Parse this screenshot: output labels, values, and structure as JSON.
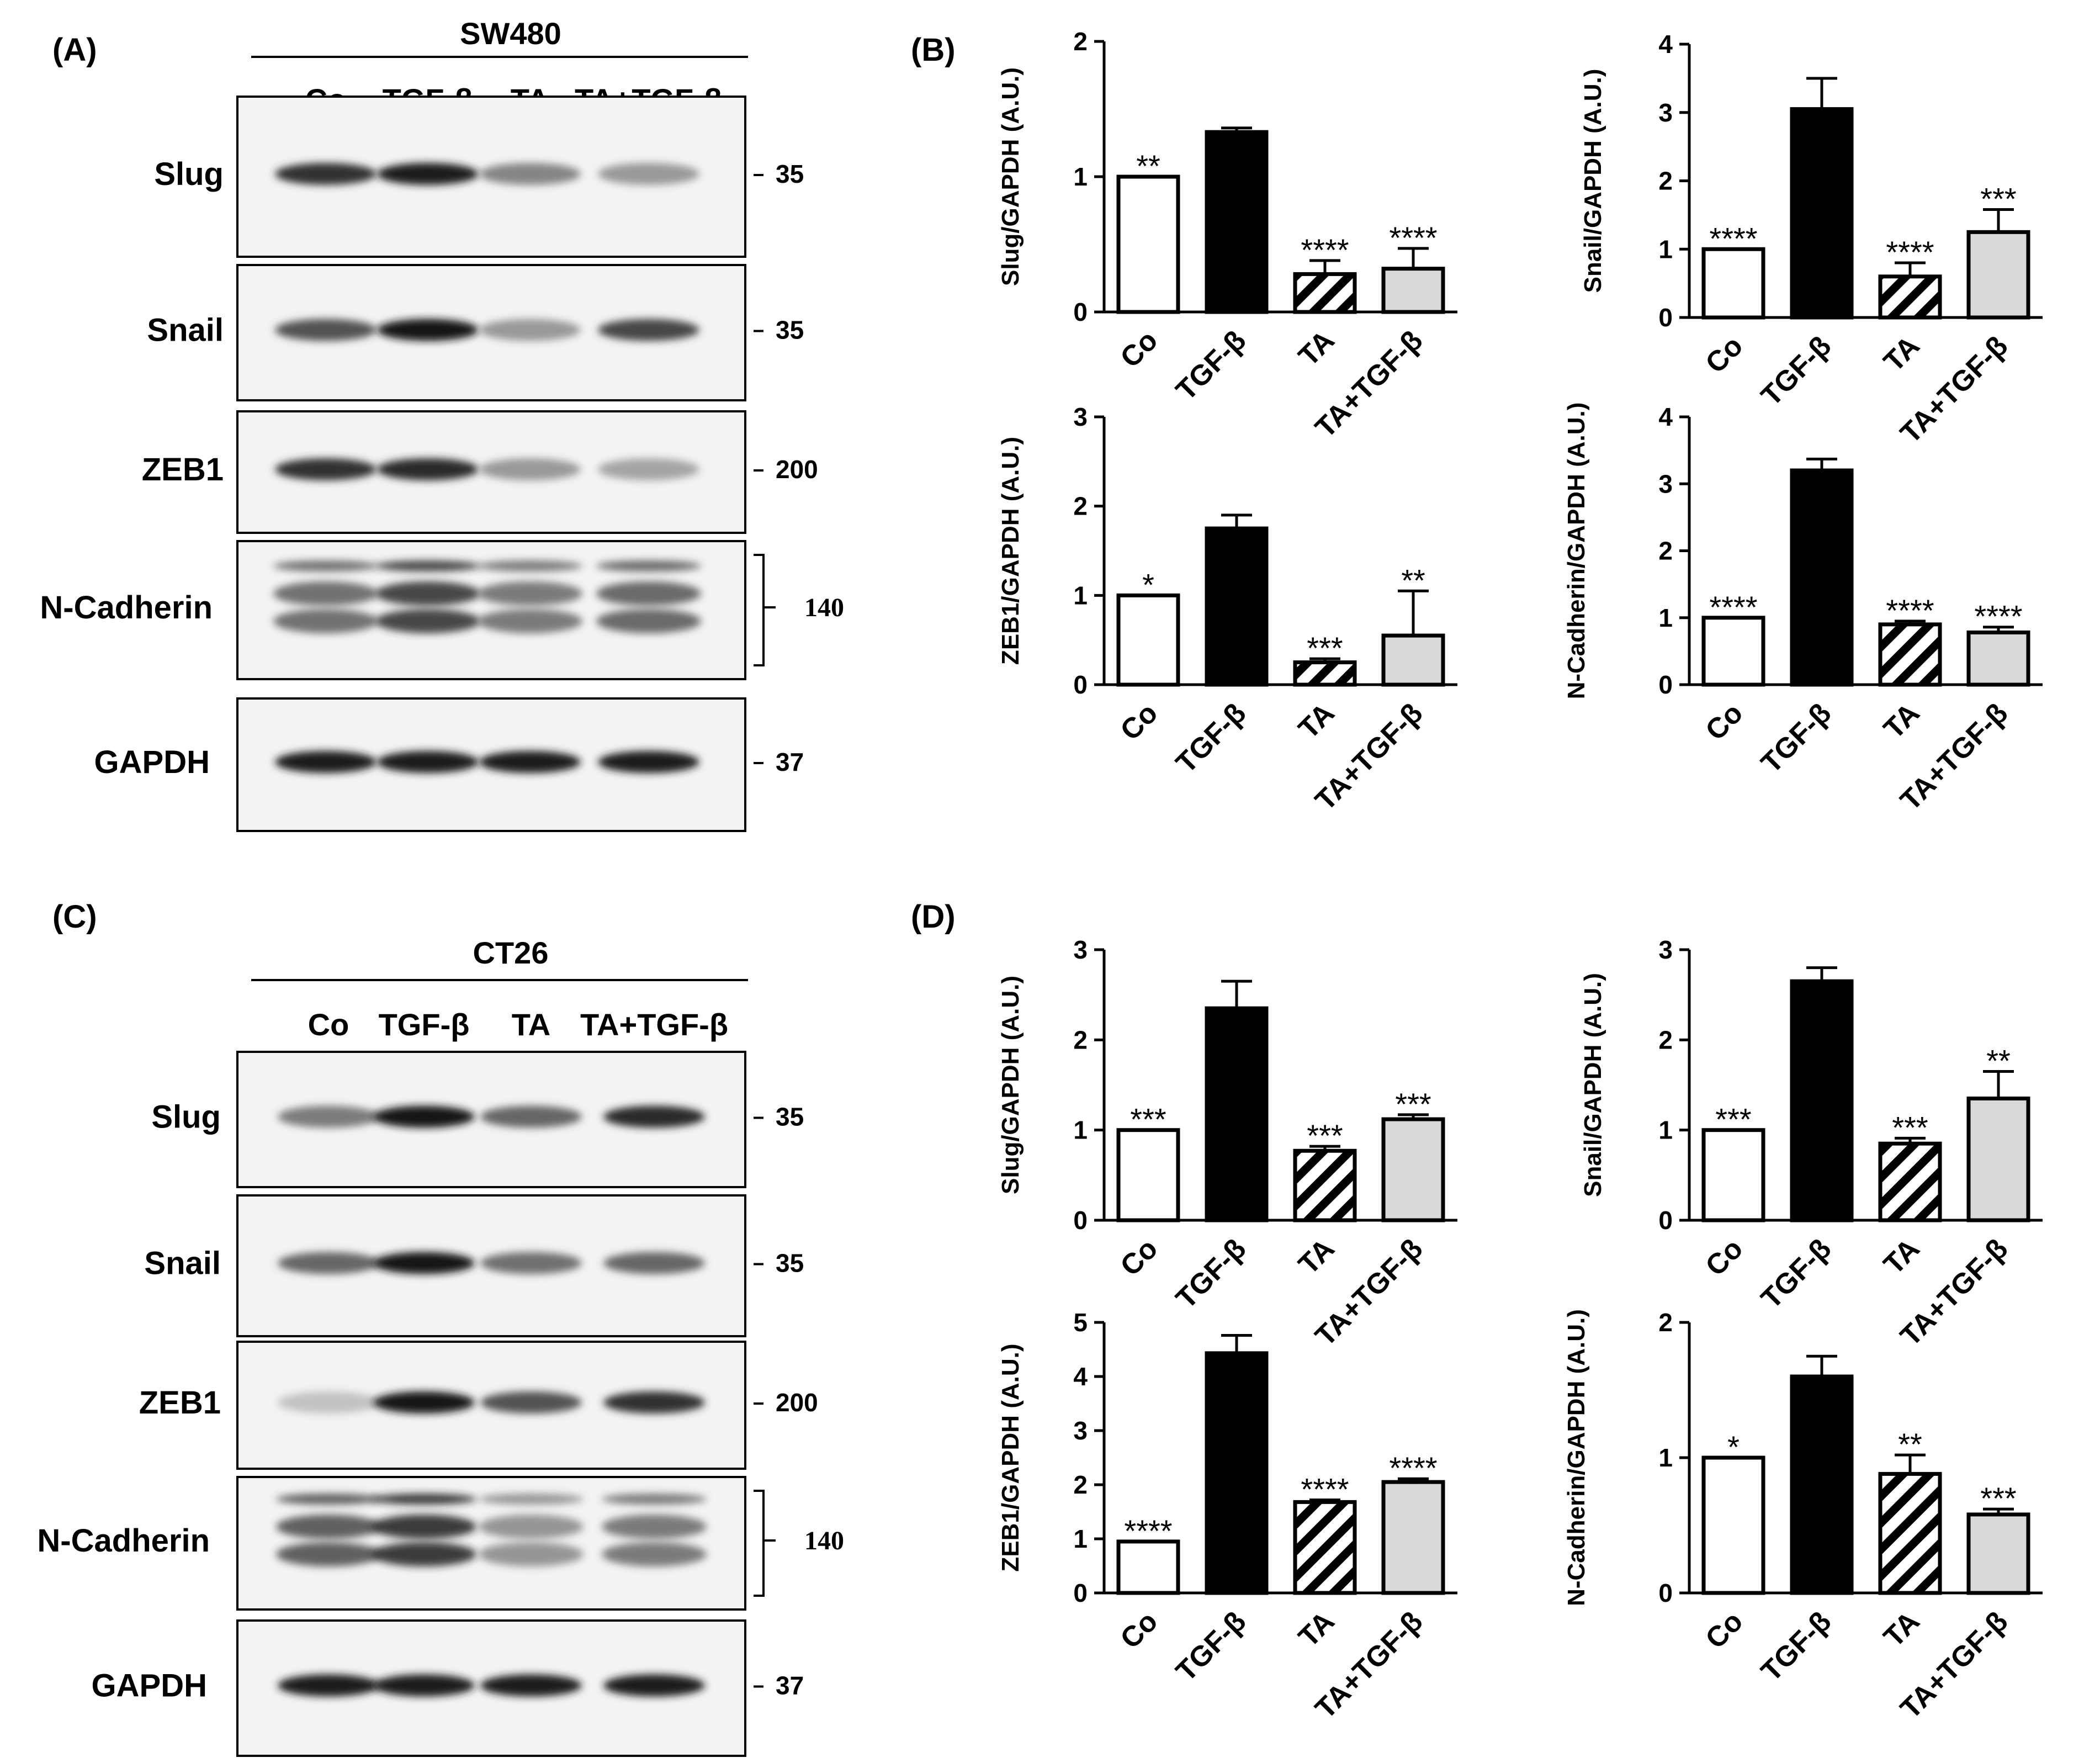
{
  "panel_labels": [
    "(A)",
    "(B)",
    "(C)",
    "(D)"
  ],
  "blots": [
    {
      "title": "SW480",
      "lanes": [
        "Co",
        "TGF-β",
        "TA",
        "TA+TGF-β"
      ],
      "rows": [
        {
          "label": "Slug",
          "mw": "35",
          "intensity": [
            0.85,
            0.95,
            0.45,
            0.35
          ]
        },
        {
          "label": "Snail",
          "mw": "35",
          "intensity": [
            0.7,
            1.0,
            0.35,
            0.75
          ]
        },
        {
          "label": "ZEB1",
          "mw": "200",
          "intensity": [
            0.85,
            0.9,
            0.35,
            0.3
          ]
        },
        {
          "label": "N-Cadherin",
          "mw": "140",
          "intensity": [
            0.65,
            0.9,
            0.6,
            0.7
          ]
        },
        {
          "label": "GAPDH",
          "mw": "37",
          "intensity": [
            0.95,
            0.95,
            0.95,
            0.95
          ]
        }
      ]
    },
    {
      "title": "CT26",
      "lanes": [
        "Co",
        "TGF-β",
        "TA",
        "TA+TGF-β"
      ],
      "rows": [
        {
          "label": "Slug",
          "mw": "35",
          "intensity": [
            0.5,
            1.0,
            0.6,
            0.9
          ]
        },
        {
          "label": "Snail",
          "mw": "35",
          "intensity": [
            0.6,
            1.0,
            0.55,
            0.6
          ]
        },
        {
          "label": "ZEB1",
          "mw": "200",
          "intensity": [
            0.15,
            1.0,
            0.7,
            0.85
          ]
        },
        {
          "label": "N-Cadherin",
          "mw": "140",
          "intensity": [
            0.75,
            0.95,
            0.45,
            0.6
          ]
        },
        {
          "label": "GAPDH",
          "mw": "37",
          "intensity": [
            0.95,
            0.95,
            0.95,
            0.95
          ]
        }
      ]
    }
  ],
  "chart_data": [
    {
      "panel": "(B)",
      "type": "bar",
      "ylabel": "Slug/GAPDH (A.U.)",
      "categories": [
        "Co",
        "TGF-β",
        "TA",
        "TA+TGF-β"
      ],
      "values": [
        1.0,
        1.33,
        0.28,
        0.32
      ],
      "errors": [
        0,
        0.03,
        0.1,
        0.15
      ],
      "significance": [
        "**",
        "",
        "****",
        "****"
      ],
      "ylim": [
        0,
        2
      ],
      "ticks": [
        0,
        1,
        2
      ]
    },
    {
      "panel": "(B)",
      "type": "bar",
      "ylabel": "Snail/GAPDH (A.U.)",
      "categories": [
        "Co",
        "TGF-β",
        "TA",
        "TA+TGF-β"
      ],
      "values": [
        1.0,
        3.05,
        0.6,
        1.25
      ],
      "errors": [
        0,
        0.45,
        0.2,
        0.33
      ],
      "significance": [
        "****",
        "",
        "****",
        "***"
      ],
      "ylim": [
        0,
        4
      ],
      "ticks": [
        0,
        1,
        2,
        3,
        4
      ]
    },
    {
      "panel": "(B)",
      "type": "bar",
      "ylabel": "ZEB1/GAPDH (A.U.)",
      "categories": [
        "Co",
        "TGF-β",
        "TA",
        "TA+TGF-β"
      ],
      "values": [
        1.0,
        1.75,
        0.25,
        0.55
      ],
      "errors": [
        0,
        0.15,
        0.04,
        0.5
      ],
      "significance": [
        "*",
        "",
        "***",
        "**"
      ],
      "ylim": [
        0,
        3
      ],
      "ticks": [
        0,
        1,
        2,
        3
      ]
    },
    {
      "panel": "(B)",
      "type": "bar",
      "ylabel": "N-Cadherin/GAPDH (A.U.)",
      "categories": [
        "Co",
        "TGF-β",
        "TA",
        "TA+TGF-β"
      ],
      "values": [
        1.0,
        3.2,
        0.9,
        0.78
      ],
      "errors": [
        0,
        0.17,
        0.05,
        0.08
      ],
      "significance": [
        "****",
        "",
        "****",
        "****"
      ],
      "ylim": [
        0,
        4
      ],
      "ticks": [
        0,
        1,
        2,
        3,
        4
      ]
    },
    {
      "panel": "(D)",
      "type": "bar",
      "ylabel": "Slug/GAPDH (A.U.)",
      "categories": [
        "Co",
        "TGF-β",
        "TA",
        "TA+TGF-β"
      ],
      "values": [
        1.0,
        2.35,
        0.77,
        1.12
      ],
      "errors": [
        0,
        0.3,
        0.05,
        0.05
      ],
      "significance": [
        "***",
        "",
        "***",
        "***"
      ],
      "ylim": [
        0,
        3
      ],
      "ticks": [
        0,
        1,
        2,
        3
      ]
    },
    {
      "panel": "(D)",
      "type": "bar",
      "ylabel": "Snail/GAPDH (A.U.)",
      "categories": [
        "Co",
        "TGF-β",
        "TA",
        "TA+TGF-β"
      ],
      "values": [
        1.0,
        2.65,
        0.85,
        1.35
      ],
      "errors": [
        0,
        0.15,
        0.06,
        0.3
      ],
      "significance": [
        "***",
        "",
        "***",
        "**"
      ],
      "ylim": [
        0,
        3
      ],
      "ticks": [
        0,
        1,
        2,
        3
      ]
    },
    {
      "panel": "(D)",
      "type": "bar",
      "ylabel": "ZEB1/GAPDH (A.U.)",
      "categories": [
        "Co",
        "TGF-β",
        "TA",
        "TA+TGF-β"
      ],
      "values": [
        0.95,
        4.43,
        1.68,
        2.05
      ],
      "errors": [
        0,
        0.33,
        0.04,
        0.06
      ],
      "significance": [
        "****",
        "",
        "****",
        "****"
      ],
      "ylim": [
        0,
        5
      ],
      "ticks": [
        0,
        1,
        2,
        3,
        4,
        5
      ]
    },
    {
      "panel": "(D)",
      "type": "bar",
      "ylabel": "N-Cadherin/GAPDH (A.U.)",
      "categories": [
        "Co",
        "TGF-β",
        "TA",
        "TA+TGF-β"
      ],
      "values": [
        1.0,
        1.6,
        0.88,
        0.58
      ],
      "errors": [
        0,
        0.15,
        0.14,
        0.04
      ],
      "significance": [
        "*",
        "",
        "**",
        "***"
      ],
      "ylim": [
        0,
        2
      ],
      "ticks": [
        0,
        1,
        2
      ]
    }
  ],
  "bar_styles": [
    "white",
    "black",
    "hatched",
    "lightgray"
  ],
  "colors": {
    "ink": "#000000",
    "gray_fill": "#d9d9d9",
    "blot_bg": "#f3f3f3"
  }
}
